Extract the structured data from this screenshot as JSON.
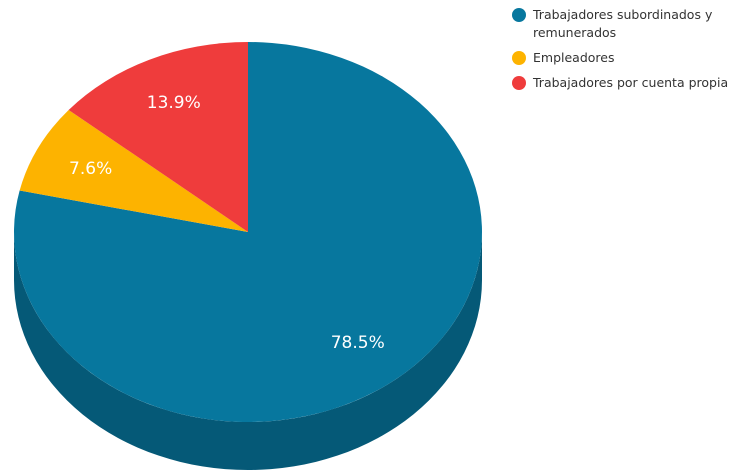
{
  "chart_data": {
    "type": "pie",
    "categories": [
      "Trabajadores subordinados y remunerados",
      "Empleadores",
      "Trabajadores por cuenta propia"
    ],
    "values": [
      78.5,
      7.6,
      13.9
    ],
    "value_labels": [
      "78.5%",
      "7.6%",
      "13.9%"
    ],
    "colors": [
      "#07779e",
      "#fdb300",
      "#ef3c3c"
    ]
  }
}
